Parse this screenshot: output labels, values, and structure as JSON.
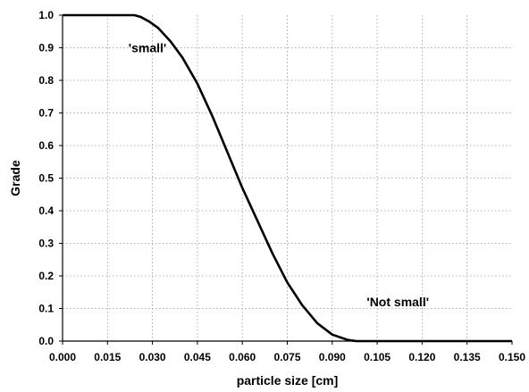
{
  "chart_data": {
    "type": "line",
    "title": "",
    "xlabel": "particle size [cm]",
    "ylabel": "Grade",
    "xlim": [
      0.0,
      0.15
    ],
    "ylim": [
      0.0,
      1.0
    ],
    "x_ticks": [
      "0.000",
      "0.015",
      "0.030",
      "0.045",
      "0.060",
      "0.075",
      "0.090",
      "0.105",
      "0.120",
      "0.135",
      "0.150"
    ],
    "y_ticks": [
      "0.0",
      "0.1",
      "0.2",
      "0.3",
      "0.4",
      "0.5",
      "0.6",
      "0.7",
      "0.8",
      "0.9",
      "1.0"
    ],
    "grid": true,
    "series": [
      {
        "x": [
          0.0,
          0.024,
          0.026,
          0.029,
          0.032,
          0.036,
          0.04,
          0.045,
          0.05,
          0.055,
          0.06,
          0.065,
          0.07,
          0.075,
          0.08,
          0.085,
          0.09,
          0.095,
          0.098,
          0.1,
          0.15
        ],
        "y": [
          1.0,
          1.0,
          0.995,
          0.98,
          0.96,
          0.92,
          0.87,
          0.79,
          0.69,
          0.58,
          0.47,
          0.37,
          0.27,
          0.18,
          0.11,
          0.055,
          0.02,
          0.004,
          0.0,
          0.0,
          0.0
        ]
      }
    ],
    "annotations": [
      {
        "text": "'small'",
        "x": 0.022,
        "y": 0.9
      },
      {
        "text": "'Not small'",
        "x": 0.1015,
        "y": 0.12
      }
    ],
    "color": "#000000"
  }
}
